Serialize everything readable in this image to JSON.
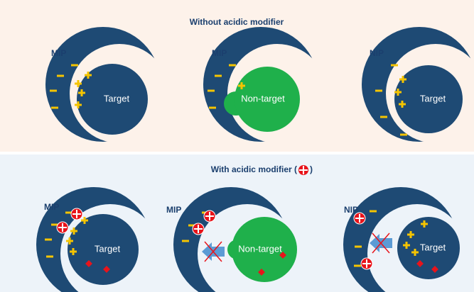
{
  "top_panel": {
    "title": "Without acidic modifier",
    "panels": [
      {
        "label": "MIP",
        "object": "Target"
      },
      {
        "label": "MIP",
        "object": "Non-target"
      },
      {
        "label": "NIP",
        "object": "Target"
      }
    ]
  },
  "bottom_panel": {
    "title_prefix": "With acidic modifier (",
    "title_suffix": ")",
    "panels": [
      {
        "label": "MIP",
        "object": "Target"
      },
      {
        "label": "MIP",
        "object": "Non-target"
      },
      {
        "label": "NIP",
        "object": "Target"
      }
    ]
  }
}
